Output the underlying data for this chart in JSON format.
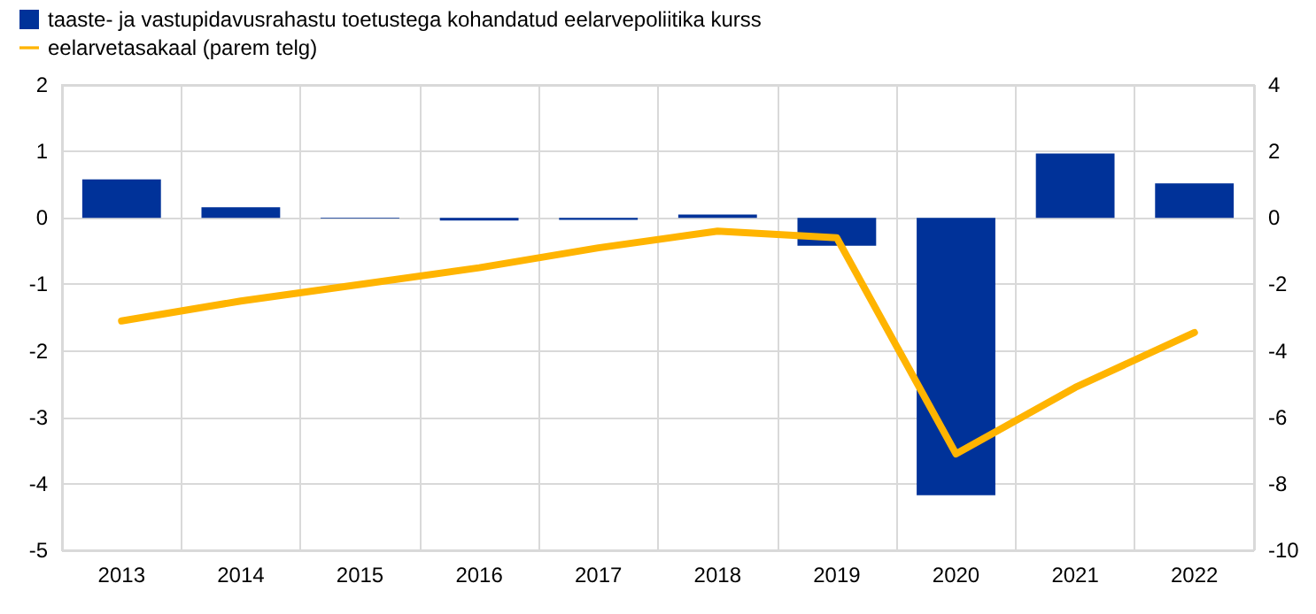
{
  "chart_data": {
    "type": "bar",
    "categories": [
      "2013",
      "2014",
      "2015",
      "2016",
      "2017",
      "2018",
      "2019",
      "2020",
      "2021",
      "2022"
    ],
    "series": [
      {
        "name": "taaste- ja vastupidavusrahastu toetustega kohandatud eelarvepoliitika kurss",
        "color": "#003299",
        "values": [
          0.58,
          0.16,
          -0.01,
          -0.04,
          -0.03,
          0.05,
          -0.42,
          -4.17,
          0.97,
          0.52
        ]
      },
      {
        "name": "eelarvetasakaal (parem telg)",
        "type": "line",
        "axis": "y2",
        "color": "#ffb400",
        "values": [
          -3.1,
          -2.5,
          -2.0,
          -1.5,
          -0.9,
          -0.4,
          -0.6,
          -7.1,
          -5.1,
          -3.45
        ]
      }
    ],
    "ylim": [
      -5,
      2
    ],
    "yticks": [
      -5,
      -4,
      -3,
      -2,
      -1,
      0,
      1,
      2
    ],
    "y2lim": [
      -10,
      4
    ],
    "y2ticks": [
      -10,
      -8,
      -6,
      -4,
      -2,
      0,
      2,
      4
    ],
    "grid": true,
    "legend": "top left",
    "marker": "none",
    "line_style": "solid"
  }
}
